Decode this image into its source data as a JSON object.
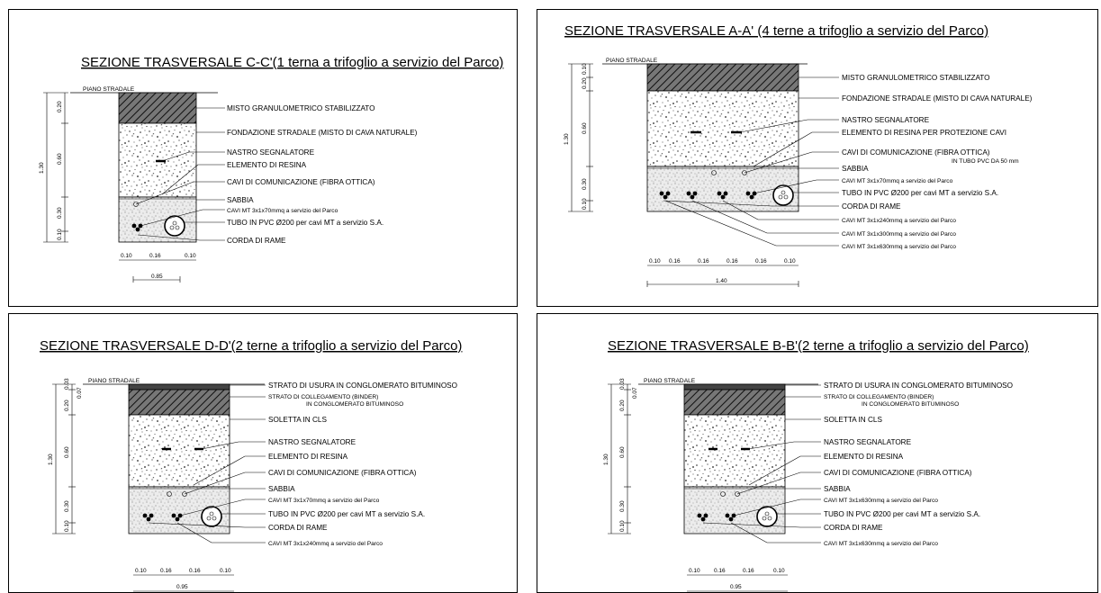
{
  "panels": [
    {
      "title": "SEZIONE TRASVERSALE C-C'(1 terna a trifoglio a servizio del Parco)",
      "road_label": "PIANO STRADALE",
      "labels": [
        "MISTO GRANULOMETRICO STABILIZZATO",
        "FONDAZIONE STRADALE (MISTO DI CAVA NATURALE)",
        "NASTRO SEGNALATORE",
        "ELEMENTO DI RESINA",
        "CAVI DI COMUNICAZIONE (FIBRA OTTICA)",
        "SABBIA",
        "CAVI MT 3x1x70mmq a servizio del Parco",
        "TUBO IN PVC Ø200 per cavi MT a servizio S.A.",
        "CORDA DI RAME"
      ],
      "vert_dims": [
        "0.20",
        "0.60",
        "0.30",
        "0.10"
      ],
      "total_depth": "1.30",
      "horiz_dims": [
        "0.10",
        "0.16",
        "0.10"
      ],
      "total_width": "0.85"
    },
    {
      "title": "SEZIONE TRASVERSALE A-A' (4 terne a trifoglio a servizio del Parco)",
      "road_label": "PIANO STRADALE",
      "labels": [
        "MISTO GRANULOMETRICO STABILIZZATO",
        "FONDAZIONE STRADALE (MISTO DI CAVA NATURALE)",
        "NASTRO SEGNALATORE",
        "ELEMENTO DI RESINA PER PROTEZIONE CAVI",
        "CAVI DI COMUNICAZIONE (FIBRA OTTICA)",
        "IN TUBO PVC DA 50 mm",
        "SABBIA",
        "CAVI MT 3x1x70mmq a servizio del Parco",
        "TUBO IN PVC Ø200 per cavi MT a servizio S.A.",
        "CORDA DI RAME",
        "CAVI MT 3x1x240mmq a servizio del Parco",
        "CAVI MT 3x1x300mmq a servizio del Parco",
        "CAVI MT 3x1x630mmq a servizio del Parco"
      ],
      "vert_dims": [
        "0.10",
        "0.20",
        "0.60",
        "0.30",
        "0.10"
      ],
      "total_depth": "1.30",
      "horiz_dims": [
        "0.10",
        "0.16",
        "0.16",
        "0.16",
        "0.16",
        "0.10"
      ],
      "total_width": "1.40"
    },
    {
      "title": "SEZIONE TRASVERSALE D-D'(2 terne a trifoglio a servizio del Parco)",
      "road_label": "PIANO STRADALE",
      "labels": [
        "STRATO DI USURA IN CONGLOMERATO BITUMINOSO",
        "STRATO DI COLLEGAMENTO (BINDER)",
        "IN CONGLOMERATO BITUMINOSO",
        "SOLETTA IN CLS",
        "NASTRO SEGNALATORE",
        "ELEMENTO DI RESINA",
        "CAVI DI COMUNICAZIONE (FIBRA OTTICA)",
        "SABBIA",
        "CAVI MT 3x1x70mmq a servizio del Parco",
        "TUBO IN PVC Ø200 per cavi MT a servizio S.A.",
        "CORDA DI RAME",
        "CAVI MT 3x1x240mmq a servizio del Parco"
      ],
      "vert_dims": [
        "0.03",
        "0.07",
        "0.20",
        "0.60",
        "0.30",
        "0.10"
      ],
      "total_depth": "1.30",
      "horiz_dims": [
        "0.10",
        "0.16",
        "0.16",
        "0.10"
      ],
      "total_width": "0.95"
    },
    {
      "title": "SEZIONE TRASVERSALE B-B'(2 terne a trifoglio a servizio del Parco)",
      "road_label": "PIANO STRADALE",
      "labels": [
        "STRATO DI USURA IN CONGLOMERATO BITUMINOSO",
        "STRATO DI COLLEGAMENTO (BINDER)",
        "IN CONGLOMERATO BITUMINOSO",
        "SOLETTA IN CLS",
        "NASTRO SEGNALATORE",
        "ELEMENTO DI RESINA",
        "CAVI DI COMUNICAZIONE (FIBRA OTTICA)",
        "SABBIA",
        "CAVI MT 3x1x630mmq a servizio del Parco",
        "TUBO IN PVC Ø200 per cavi MT a servizio S.A.",
        "CORDA DI RAME",
        "CAVI MT 3x1x630mmq a servizio del Parco"
      ],
      "vert_dims": [
        "0.03",
        "0.07",
        "0.20",
        "0.60",
        "0.30",
        "0.10"
      ],
      "total_depth": "1.30",
      "horiz_dims": [
        "0.10",
        "0.16",
        "0.16",
        "0.10"
      ],
      "total_width": "0.95"
    }
  ]
}
